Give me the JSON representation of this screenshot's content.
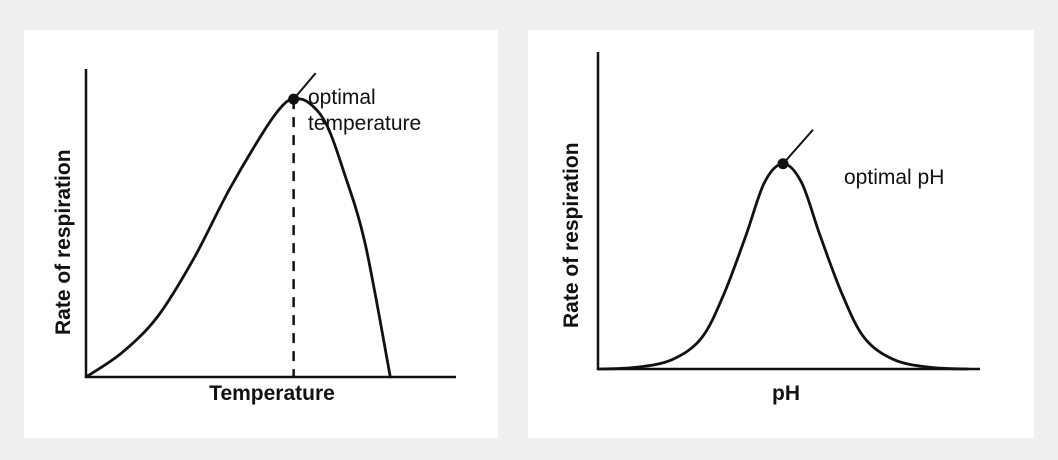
{
  "chart_data": [
    {
      "type": "line",
      "xlabel": "Temperature",
      "ylabel": "Rate of respiration",
      "xlim": [
        0,
        100
      ],
      "ylim": [
        0,
        100
      ],
      "curve": {
        "x": [
          0,
          10,
          20,
          30,
          40,
          50,
          55,
          58,
          62,
          67,
          72,
          78,
          85
        ],
        "y": [
          0,
          8,
          20,
          39,
          62,
          82,
          90,
          92,
          91,
          84,
          68,
          44,
          0
        ]
      },
      "optimum": {
        "x": 58,
        "y": 92,
        "label_line1": "optimal",
        "label_line2": "temperature"
      },
      "dashed_line_at_optimum": true
    },
    {
      "type": "line",
      "xlabel": "pH",
      "ylabel": "Rate of respiration",
      "xlim": [
        0,
        100
      ],
      "ylim": [
        0,
        100
      ],
      "curve": {
        "x": [
          0,
          10,
          20,
          28,
          34,
          40,
          45,
          50,
          55,
          60,
          66,
          72,
          80,
          90,
          100
        ],
        "y": [
          0,
          0.5,
          3,
          10,
          24,
          43,
          60,
          66,
          60,
          43,
          24,
          10,
          3,
          0.5,
          0
        ]
      },
      "optimum": {
        "x": 50,
        "y": 66,
        "label": "optimal pH"
      }
    }
  ]
}
